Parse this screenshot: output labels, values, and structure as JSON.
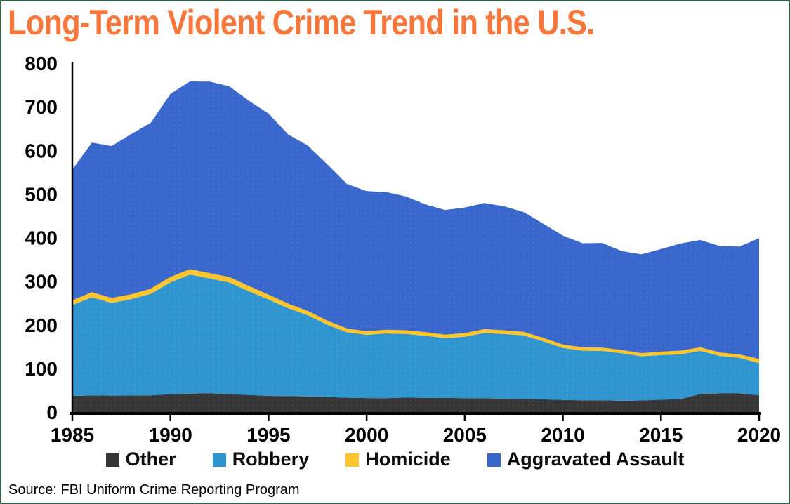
{
  "title": "Long-Term Violent Crime Trend in the U.S.",
  "source_note": "Source: FBI Uniform Crime Reporting Program",
  "palette": {
    "title_color": "#F7763B",
    "frame_border": "#35624A",
    "axis_color": "#000000"
  },
  "chart_data": {
    "type": "area",
    "stacked": true,
    "grid": false,
    "legend_position": "bottom",
    "xlabel": "",
    "ylabel": "",
    "ylim": [
      0,
      800
    ],
    "y_ticks": [
      0,
      100,
      200,
      300,
      400,
      500,
      600,
      700,
      800
    ],
    "x_ticks": [
      1985,
      1990,
      1995,
      2000,
      2005,
      2010,
      2015,
      2020
    ],
    "x": [
      1985,
      1986,
      1987,
      1988,
      1989,
      1990,
      1991,
      1992,
      1993,
      1994,
      1995,
      1996,
      1997,
      1998,
      1999,
      2000,
      2001,
      2002,
      2003,
      2004,
      2005,
      2006,
      2007,
      2008,
      2009,
      2010,
      2011,
      2012,
      2013,
      2014,
      2015,
      2016,
      2017,
      2018,
      2019,
      2020
    ],
    "series": [
      {
        "name": "Other",
        "color": "#363636",
        "values": [
          36.8,
          38.1,
          37.6,
          37.8,
          38.3,
          41.1,
          42.3,
          42.8,
          41.1,
          39.3,
          37.1,
          36.3,
          35.9,
          34.5,
          32.8,
          32.0,
          31.8,
          33.1,
          32.3,
          32.4,
          31.8,
          31.6,
          30.6,
          29.8,
          29.1,
          27.7,
          27.0,
          27.1,
          25.9,
          26.6,
          28.4,
          29.6,
          41.7,
          42.6,
          42.6,
          38.4
        ]
      },
      {
        "name": "Robbery",
        "color": "#2F95CE",
        "values": [
          208.5,
          225.1,
          212.7,
          220.9,
          233.0,
          256.3,
          272.7,
          263.7,
          256.0,
          237.8,
          220.9,
          201.9,
          186.2,
          165.5,
          150.1,
          145.0,
          148.5,
          146.1,
          142.5,
          136.7,
          140.8,
          150.0,
          148.3,
          145.9,
          133.1,
          119.3,
          113.9,
          113.1,
          109.0,
          101.3,
          102.2,
          102.9,
          98.6,
          86.2,
          81.6,
          73.9
        ]
      },
      {
        "name": "Homicide",
        "color": "#FFC52F",
        "values": [
          7.9,
          8.6,
          8.3,
          8.5,
          8.7,
          9.4,
          9.8,
          9.3,
          9.5,
          9.0,
          8.2,
          7.4,
          6.8,
          6.3,
          5.7,
          5.5,
          5.6,
          5.6,
          5.7,
          5.5,
          5.6,
          5.8,
          5.7,
          5.4,
          5.0,
          4.8,
          4.7,
          4.7,
          4.5,
          4.4,
          4.9,
          5.4,
          5.3,
          5.0,
          5.1,
          6.5
        ]
      },
      {
        "name": "Aggravated Assault",
        "color": "#3A67CC",
        "values": [
          302.9,
          346.1,
          351.3,
          370.2,
          383.4,
          422.9,
          433.4,
          441.9,
          440.5,
          427.6,
          418.3,
          391.0,
          382.1,
          361.4,
          334.3,
          324.0,
          318.6,
          309.5,
          295.4,
          288.6,
          290.8,
          292.0,
          287.2,
          277.5,
          264.7,
          252.8,
          241.5,
          242.8,
          229.6,
          229.2,
          238.1,
          248.5,
          248.9,
          246.8,
          250.2,
          279.7
        ]
      }
    ]
  }
}
